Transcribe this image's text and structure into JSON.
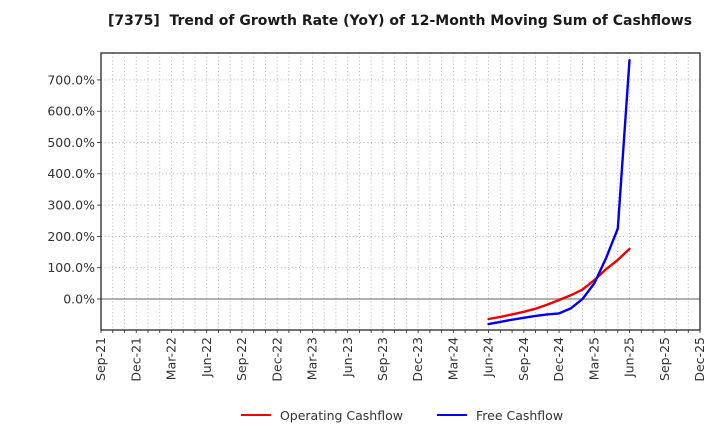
{
  "title": "[7375]  Trend of Growth Rate (YoY) of 12-Month Moving Sum of Cashflows",
  "colors": {
    "operating_line": "#ee0000",
    "free_line": "#0000ee",
    "grid": "#aaaaaa",
    "zero_line": "#808080",
    "spine": "#262626",
    "tick_text": "#333333",
    "title_text": "#1a1a1a",
    "background": "#ffffff"
  },
  "chart_data": {
    "type": "line",
    "title": "[7375]  Trend of Growth Rate (YoY) of 12-Month Moving Sum of Cashflows",
    "xlabel": "",
    "ylabel": "",
    "grid": true,
    "legend_position": "bottom-center",
    "x_axis": {
      "months_total": 52,
      "tick_labels": [
        "Sep-21",
        "Dec-21",
        "Mar-22",
        "Jun-22",
        "Sep-22",
        "Dec-22",
        "Mar-23",
        "Jun-23",
        "Sep-23",
        "Dec-23",
        "Mar-24",
        "Jun-24",
        "Sep-24",
        "Dec-24",
        "Mar-25",
        "Jun-25",
        "Sep-25",
        "Dec-25"
      ],
      "tick_month_indices": [
        0,
        3,
        6,
        9,
        12,
        15,
        18,
        21,
        24,
        27,
        30,
        33,
        36,
        39,
        42,
        45,
        48,
        51
      ],
      "minor_grid": "monthly"
    },
    "y_axis": {
      "unit": "%",
      "tick_values": [
        0,
        100,
        200,
        300,
        400,
        500,
        600,
        700
      ],
      "tick_labels": [
        "0.0%",
        "100.0%",
        "200.0%",
        "300.0%",
        "400.0%",
        "500.0%",
        "600.0%",
        "700.0%"
      ],
      "ylim": [
        -99,
        786
      ]
    },
    "series": [
      {
        "name": "Operating Cashflow",
        "color": "#ee0000",
        "start_month_index": 33,
        "x_labels": [
          "Jun-24",
          "Jul-24",
          "Aug-24",
          "Sep-24",
          "Oct-24",
          "Nov-24",
          "Dec-24",
          "Jan-25",
          "Feb-25",
          "Mar-25",
          "Apr-25",
          "May-25",
          "Jun-25"
        ],
        "values": [
          -64,
          -57,
          -49,
          -41,
          -31,
          -18,
          -3,
          12,
          30,
          60,
          95,
          125,
          160
        ]
      },
      {
        "name": "Free Cashflow",
        "color": "#0000ee",
        "start_month_index": 33,
        "x_labels": [
          "Jun-24",
          "Jul-24",
          "Aug-24",
          "Sep-24",
          "Oct-24",
          "Nov-24",
          "Dec-24",
          "Jan-25",
          "Feb-25",
          "Mar-25",
          "Apr-25",
          "May-25",
          "Jun-25"
        ],
        "values": [
          -80,
          -73,
          -66,
          -60,
          -54,
          -49,
          -46,
          -30,
          0,
          50,
          130,
          225,
          763
        ]
      }
    ]
  },
  "legend": {
    "items": [
      {
        "label": "Operating Cashflow",
        "color": "#ee0000"
      },
      {
        "label": "Free Cashflow",
        "color": "#0000ee"
      }
    ]
  }
}
